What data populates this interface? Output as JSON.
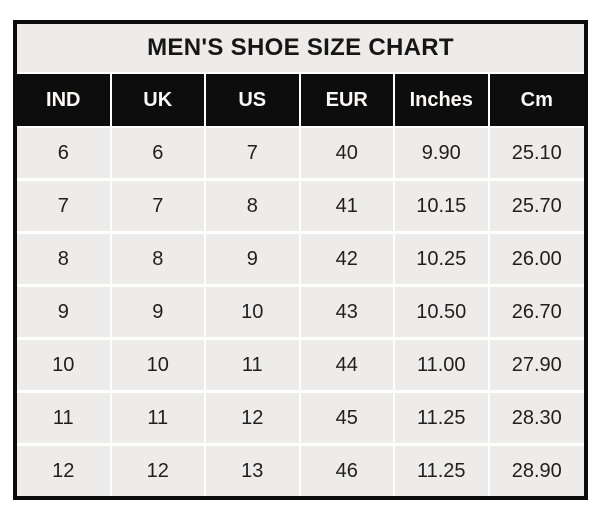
{
  "table": {
    "title": "MEN'S SHOE SIZE CHART",
    "columns": [
      "IND",
      "UK",
      "US",
      "EUR",
      "Inches",
      "Cm"
    ],
    "rows": [
      [
        "6",
        "6",
        "7",
        "40",
        "9.90",
        "25.10"
      ],
      [
        "7",
        "7",
        "8",
        "41",
        "10.15",
        "25.70"
      ],
      [
        "8",
        "8",
        "9",
        "42",
        "10.25",
        "26.00"
      ],
      [
        "9",
        "9",
        "10",
        "43",
        "10.50",
        "26.70"
      ],
      [
        "10",
        "10",
        "11",
        "44",
        "11.00",
        "27.90"
      ],
      [
        "11",
        "11",
        "12",
        "45",
        "11.25",
        "28.30"
      ],
      [
        "12",
        "12",
        "13",
        "46",
        "11.25",
        "28.90"
      ]
    ],
    "colors": {
      "header_background": "#0d0d0d",
      "header_text": "#faf9f7",
      "cell_background": "#eeeceb",
      "grid_line": "#ffffff",
      "outer_border": "#0c0c0c",
      "body_text": "#1f1f1f"
    }
  },
  "chart_data": {
    "type": "table",
    "title": "MEN'S SHOE SIZE CHART",
    "columns": [
      "IND",
      "UK",
      "US",
      "EUR",
      "Inches",
      "Cm"
    ],
    "rows": [
      [
        6,
        6,
        7,
        40,
        9.9,
        25.1
      ],
      [
        7,
        7,
        8,
        41,
        10.15,
        25.7
      ],
      [
        8,
        8,
        9,
        42,
        10.25,
        26.0
      ],
      [
        9,
        9,
        10,
        43,
        10.5,
        26.7
      ],
      [
        10,
        10,
        11,
        44,
        11.0,
        27.9
      ],
      [
        11,
        11,
        12,
        45,
        11.25,
        28.3
      ],
      [
        12,
        12,
        13,
        46,
        11.25,
        28.9
      ]
    ],
    "layout": {
      "header_style": "black band, white bold text",
      "title_style": "light gray band, black bold text",
      "grid": "white gridlines between light gray cells, thick black outer border"
    }
  }
}
